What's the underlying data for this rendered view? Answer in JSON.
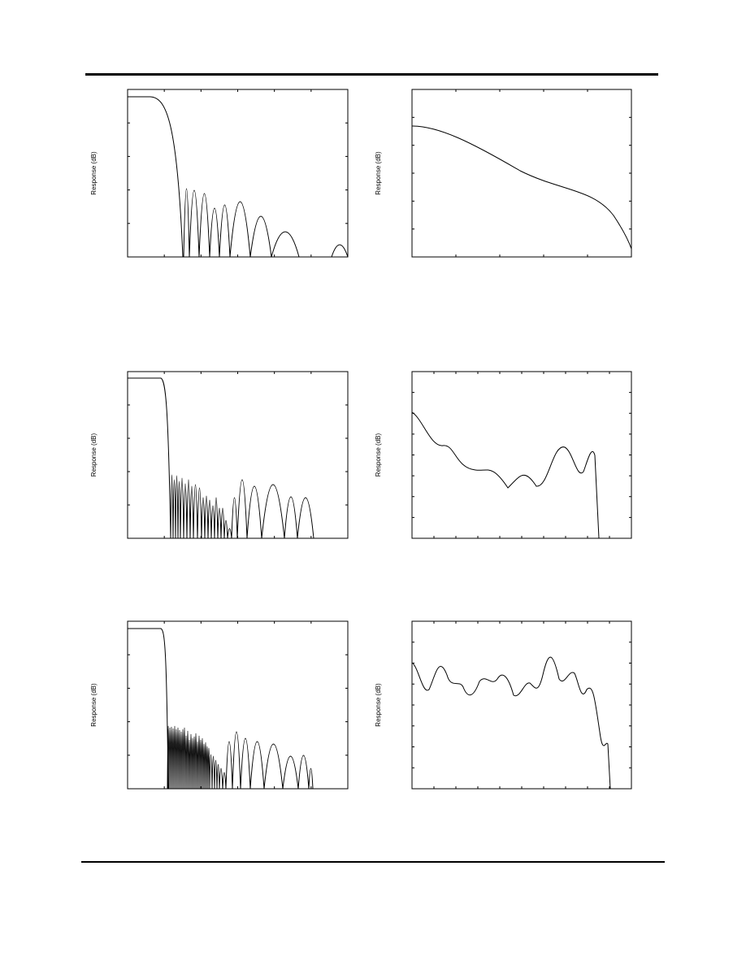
{
  "figures": [
    {
      "ylabel": "Response (dB)"
    },
    {
      "ylabel": "Response (dB)"
    },
    {
      "ylabel": "Response (dB)"
    },
    {
      "ylabel": "Response (dB)"
    },
    {
      "ylabel": "Response (dB)"
    },
    {
      "ylabel": "Response (dB)"
    }
  ]
}
